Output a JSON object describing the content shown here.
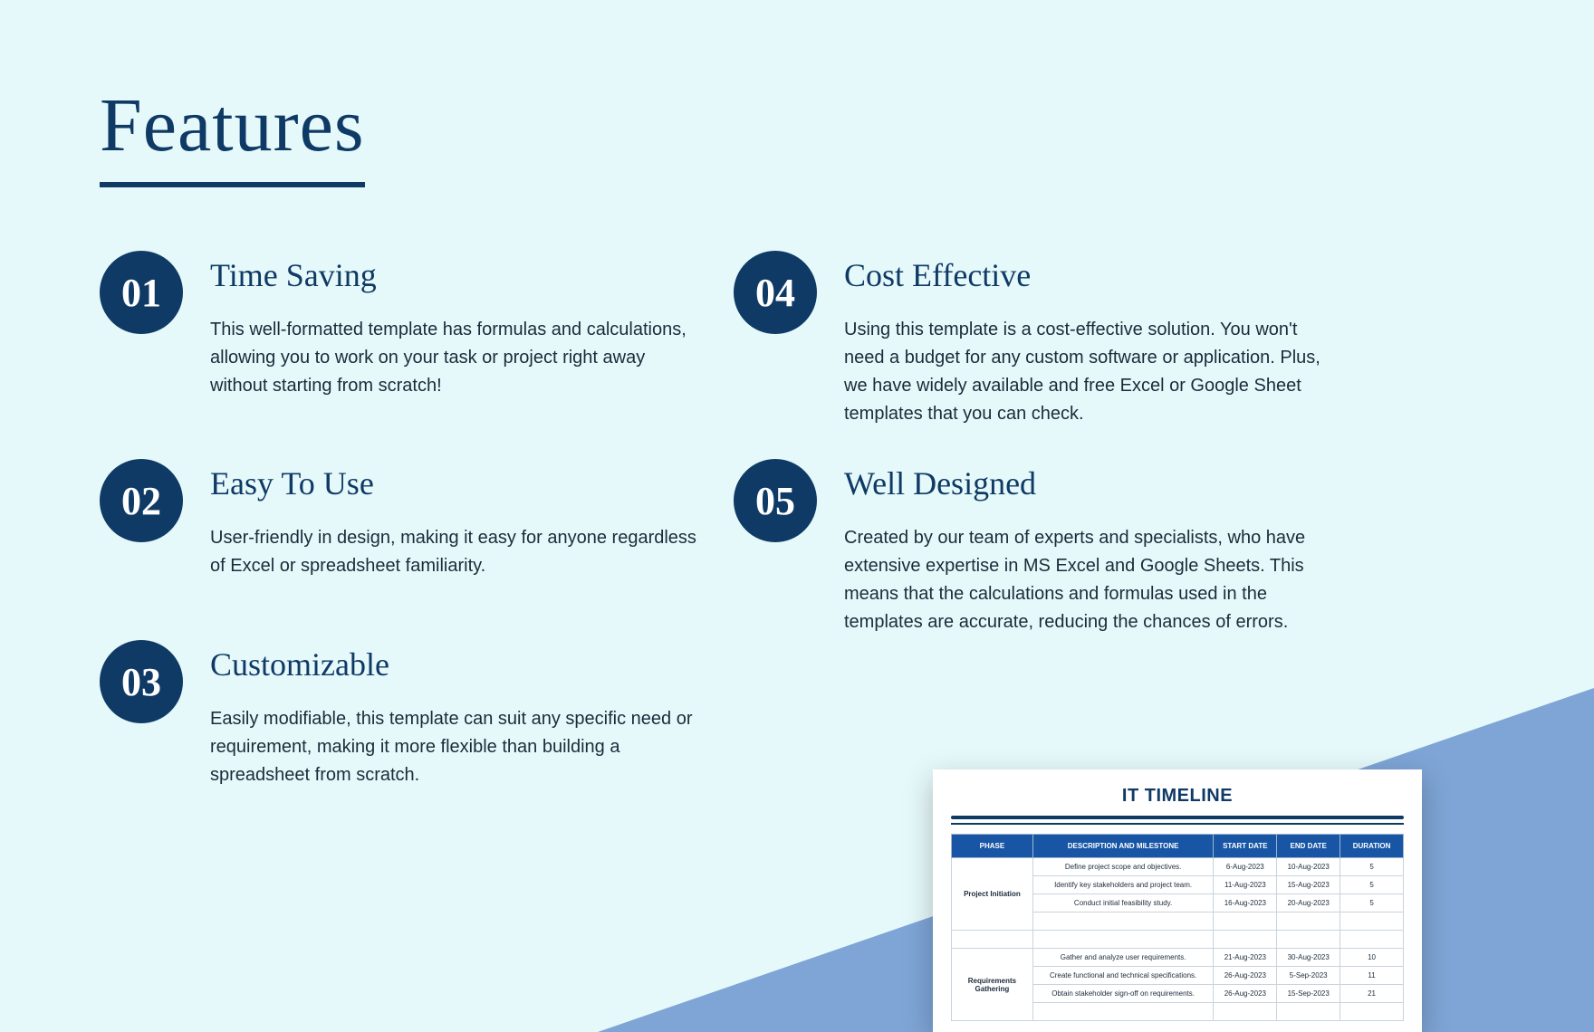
{
  "colors": {
    "background": "#e6f9fa",
    "primary": "#0f3a66",
    "triangle": "#7ea5d6",
    "table_header_bg": "#1856a5",
    "table_header_fg": "#ffffff",
    "card_bg": "#ffffff",
    "body_text": "#1c2b3a"
  },
  "title": "Features",
  "features": [
    {
      "num": "01",
      "title": "Time Saving",
      "desc": "This well-formatted template has formulas and calculations, allowing you to work on your task or project right away without starting from scratch!"
    },
    {
      "num": "02",
      "title": "Easy To Use",
      "desc": "User-friendly in design, making it easy for anyone regardless of Excel or spreadsheet familiarity."
    },
    {
      "num": "03",
      "title": "Customizable",
      "desc": "Easily modifiable, this template can suit any specific need or requirement, making it more flexible than building a spreadsheet from scratch."
    },
    {
      "num": "04",
      "title": "Cost Effective",
      "desc": "Using this template is a cost-effective solution. You won't need a budget for any custom software or application. Plus, we have widely available and free Excel or Google Sheet templates that you can check."
    },
    {
      "num": "05",
      "title": "Well Designed",
      "desc": "Created by our team of  experts and specialists, who have extensive expertise in MS Excel and Google Sheets. This means that the calculations and formulas used in the templates are accurate, reducing the chances of errors."
    }
  ],
  "preview": {
    "title": "IT TIMELINE",
    "columns": [
      "PHASE",
      "DESCRIPTION AND MILESTONE",
      "START DATE",
      "END DATE",
      "DURATION"
    ],
    "groups": [
      {
        "phase": "Project Initiation",
        "rows": [
          [
            "Define project scope and objectives.",
            "6-Aug-2023",
            "10-Aug-2023",
            "5"
          ],
          [
            "Identify key stakeholders and project team.",
            "11-Aug-2023",
            "15-Aug-2023",
            "5"
          ],
          [
            "Conduct initial feasibility study.",
            "16-Aug-2023",
            "20-Aug-2023",
            "5"
          ]
        ]
      },
      {
        "phase": "Requirements Gathering",
        "rows": [
          [
            "Gather and analyze user requirements.",
            "21-Aug-2023",
            "30-Aug-2023",
            "10"
          ],
          [
            "Create functional and technical specifications.",
            "26-Aug-2023",
            "5-Sep-2023",
            "11"
          ],
          [
            "Obtain stakeholder sign-off on requirements.",
            "26-Aug-2023",
            "15-Sep-2023",
            "21"
          ]
        ]
      }
    ]
  }
}
